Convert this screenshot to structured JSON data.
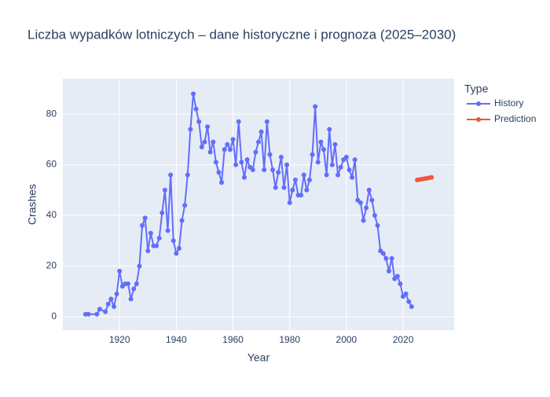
{
  "chart_data": {
    "type": "line",
    "title": "Liczba wypadków lotniczych – dane historyczne i prognoza (2025–2030)",
    "x_label": "Year",
    "y_label": "Crashes",
    "legend_title": "Type",
    "series": [
      {
        "name": "History",
        "color": "#636efa",
        "x": [
          1908,
          1909,
          1912,
          1913,
          1915,
          1916,
          1917,
          1918,
          1919,
          1920,
          1921,
          1922,
          1923,
          1924,
          1925,
          1926,
          1927,
          1928,
          1929,
          1930,
          1931,
          1932,
          1933,
          1934,
          1935,
          1936,
          1937,
          1938,
          1939,
          1940,
          1941,
          1942,
          1943,
          1944,
          1945,
          1946,
          1947,
          1948,
          1949,
          1950,
          1951,
          1952,
          1953,
          1954,
          1955,
          1956,
          1957,
          1958,
          1959,
          1960,
          1961,
          1962,
          1963,
          1964,
          1965,
          1966,
          1967,
          1968,
          1969,
          1970,
          1971,
          1972,
          1973,
          1974,
          1975,
          1976,
          1977,
          1978,
          1979,
          1980,
          1981,
          1982,
          1983,
          1984,
          1985,
          1986,
          1987,
          1988,
          1989,
          1990,
          1991,
          1992,
          1993,
          1994,
          1995,
          1996,
          1997,
          1998,
          1999,
          2000,
          2001,
          2002,
          2003,
          2004,
          2005,
          2006,
          2007,
          2008,
          2009,
          2010,
          2011,
          2012,
          2013,
          2014,
          2015,
          2016,
          2017,
          2018,
          2019,
          2020,
          2021,
          2022,
          2023
        ],
        "values": [
          1,
          1,
          1,
          3,
          2,
          5,
          7,
          4,
          9,
          18,
          12,
          13,
          13,
          7,
          11,
          13,
          20,
          36,
          39,
          26,
          33,
          28,
          28,
          31,
          41,
          50,
          34,
          56,
          30,
          25,
          27,
          38,
          44,
          56,
          74,
          88,
          82,
          77,
          67,
          69,
          75,
          65,
          69,
          61,
          57,
          53,
          66,
          68,
          66,
          70,
          60,
          77,
          61,
          55,
          62,
          59,
          58,
          65,
          69,
          73,
          58,
          77,
          64,
          58,
          51,
          57,
          63,
          51,
          60,
          45,
          50,
          54,
          48,
          48,
          56,
          50,
          54,
          64,
          83,
          61,
          69,
          66,
          56,
          74,
          60,
          68,
          56,
          59,
          62,
          63,
          58,
          55,
          62,
          46,
          45,
          38,
          43,
          50,
          46,
          40,
          36,
          26,
          25,
          23,
          18,
          23,
          15,
          16,
          13,
          8,
          9,
          6,
          4
        ]
      },
      {
        "name": "Prediction",
        "color": "#ef553b",
        "x": [
          2025,
          2026,
          2027,
          2028,
          2029,
          2030
        ],
        "values": [
          54,
          54.2,
          54.4,
          54.6,
          54.8,
          55
        ]
      }
    ],
    "xlim": [
      1900,
      2038
    ],
    "ylim": [
      -5.3,
      94
    ],
    "xticks": [
      1920,
      1940,
      1960,
      1980,
      2000,
      2020
    ],
    "yticks": [
      0,
      20,
      40,
      60,
      80
    ],
    "grid": true,
    "legend_position": "right"
  }
}
